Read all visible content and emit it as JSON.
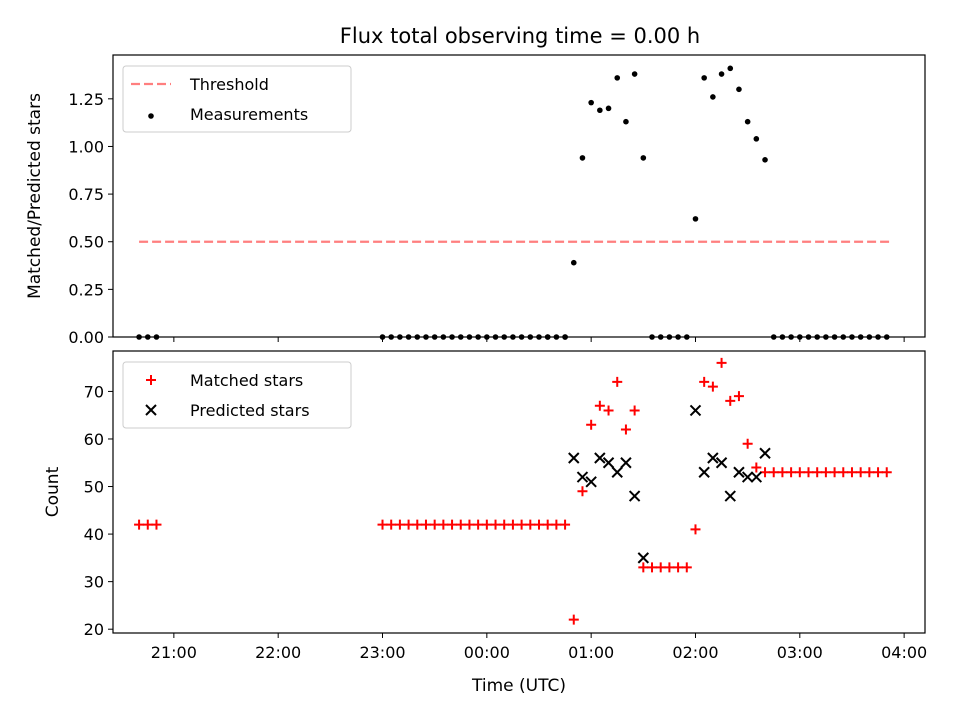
{
  "figure": {
    "title": "Flux total observing time = 0.00 h"
  },
  "chart_data": [
    {
      "type": "scatter",
      "ylabel": "Matched/Predicted stars",
      "xlabel": "",
      "xlim": [
        "20:25",
        "04:12"
      ],
      "ylim": [
        0,
        1.48
      ],
      "yticks": [
        0.0,
        0.25,
        0.5,
        0.75,
        1.0,
        1.25
      ],
      "ytick_labels": [
        "0.00",
        "0.25",
        "0.50",
        "0.75",
        "1.00",
        "1.25"
      ],
      "legend": {
        "placement": "top-left",
        "entries": [
          "Threshold",
          "Measurements"
        ]
      },
      "series": [
        {
          "name": "Threshold",
          "style": "dashed-line",
          "color": "#ff7f7f",
          "x": [
            "20:40",
            "03:52"
          ],
          "y": [
            0.5,
            0.5
          ]
        },
        {
          "name": "Measurements",
          "style": "dot",
          "color": "#000000",
          "x": [
            "20:40",
            "20:45",
            "20:50",
            "23:00",
            "23:05",
            "23:10",
            "23:15",
            "23:20",
            "23:25",
            "23:30",
            "23:35",
            "23:40",
            "23:45",
            "23:50",
            "23:55",
            "00:00",
            "00:05",
            "00:10",
            "00:15",
            "00:20",
            "00:25",
            "00:30",
            "00:35",
            "00:40",
            "00:45",
            "00:50",
            "00:55",
            "01:00",
            "01:05",
            "01:10",
            "01:15",
            "01:20",
            "01:25",
            "01:30",
            "01:35",
            "01:40",
            "01:45",
            "01:50",
            "01:55",
            "02:00",
            "02:05",
            "02:10",
            "02:15",
            "02:20",
            "02:25",
            "02:30",
            "02:35",
            "02:40",
            "02:45",
            "02:50",
            "02:55",
            "03:00",
            "03:05",
            "03:10",
            "03:15",
            "03:20",
            "03:25",
            "03:30",
            "03:35",
            "03:40",
            "03:45",
            "03:50",
            "00:35",
            "00:45"
          ],
          "y": [
            0,
            0,
            0,
            0,
            0,
            0,
            0,
            0,
            0,
            0,
            0,
            0,
            0,
            0,
            0,
            0,
            0,
            0,
            0,
            0,
            0,
            0,
            0,
            0,
            0,
            0.39,
            0.94,
            1.23,
            1.19,
            1.2,
            1.36,
            1.13,
            1.38,
            0.94,
            0,
            0,
            0,
            0,
            0,
            0.62,
            1.36,
            1.26,
            1.38,
            1.41,
            1.3,
            1.13,
            1.04,
            0.93,
            0,
            0,
            0,
            0,
            0,
            0,
            0,
            0,
            0,
            0,
            0,
            0,
            0,
            0,
            0,
            0
          ]
        }
      ]
    },
    {
      "type": "scatter",
      "ylabel": "Count",
      "xlabel": "Time (UTC)",
      "xlim": [
        "20:25",
        "04:12"
      ],
      "ylim": [
        19.2,
        78.5
      ],
      "yticks": [
        20,
        30,
        40,
        50,
        60,
        70
      ],
      "xtick_labels": [
        "21:00",
        "22:00",
        "23:00",
        "00:00",
        "01:00",
        "02:00",
        "03:00",
        "04:00"
      ],
      "legend": {
        "placement": "top-left",
        "entries": [
          "Matched stars",
          "Predicted stars"
        ]
      },
      "series": [
        {
          "name": "Matched stars",
          "marker": "plus",
          "color": "#ff0000",
          "x": [
            "20:40",
            "20:45",
            "20:50",
            "23:00",
            "23:05",
            "23:10",
            "23:15",
            "23:20",
            "23:25",
            "23:30",
            "23:35",
            "23:40",
            "23:45",
            "23:50",
            "23:55",
            "00:00",
            "00:05",
            "00:10",
            "00:15",
            "00:20",
            "00:25",
            "00:30",
            "00:35",
            "00:40",
            "00:45",
            "00:50",
            "00:55",
            "01:00",
            "01:05",
            "01:10",
            "01:15",
            "01:20",
            "01:25",
            "01:30",
            "01:35",
            "01:40",
            "01:45",
            "01:50",
            "01:55",
            "02:00",
            "02:05",
            "02:10",
            "02:15",
            "02:20",
            "02:25",
            "02:30",
            "02:35",
            "02:40",
            "02:45",
            "02:50",
            "02:55",
            "03:00",
            "03:05",
            "03:10",
            "03:15",
            "03:20",
            "03:25",
            "03:30",
            "03:35",
            "03:40",
            "03:45",
            "03:50"
          ],
          "y": [
            42,
            42,
            42,
            42,
            42,
            42,
            42,
            42,
            42,
            42,
            42,
            42,
            42,
            42,
            42,
            42,
            42,
            42,
            42,
            42,
            42,
            42,
            42,
            42,
            42,
            22,
            49,
            63,
            67,
            66,
            72,
            62,
            66,
            33,
            33,
            33,
            33,
            33,
            33,
            41,
            72,
            71,
            76,
            68,
            69,
            59,
            54,
            53,
            53,
            53,
            53,
            53,
            53,
            53,
            53,
            53,
            53,
            53,
            53,
            53,
            53,
            53
          ]
        },
        {
          "name": "Predicted stars",
          "marker": "x",
          "color": "#000000",
          "x": [
            "00:50",
            "00:55",
            "01:00",
            "01:05",
            "01:10",
            "01:15",
            "01:20",
            "01:25",
            "01:30",
            "02:00",
            "02:05",
            "02:10",
            "02:15",
            "02:20",
            "02:25",
            "02:30",
            "02:35",
            "02:40"
          ],
          "y": [
            56,
            52,
            51,
            56,
            55,
            53,
            55,
            48,
            35,
            66,
            53,
            56,
            55,
            48,
            53,
            52,
            52,
            57
          ]
        }
      ]
    }
  ]
}
